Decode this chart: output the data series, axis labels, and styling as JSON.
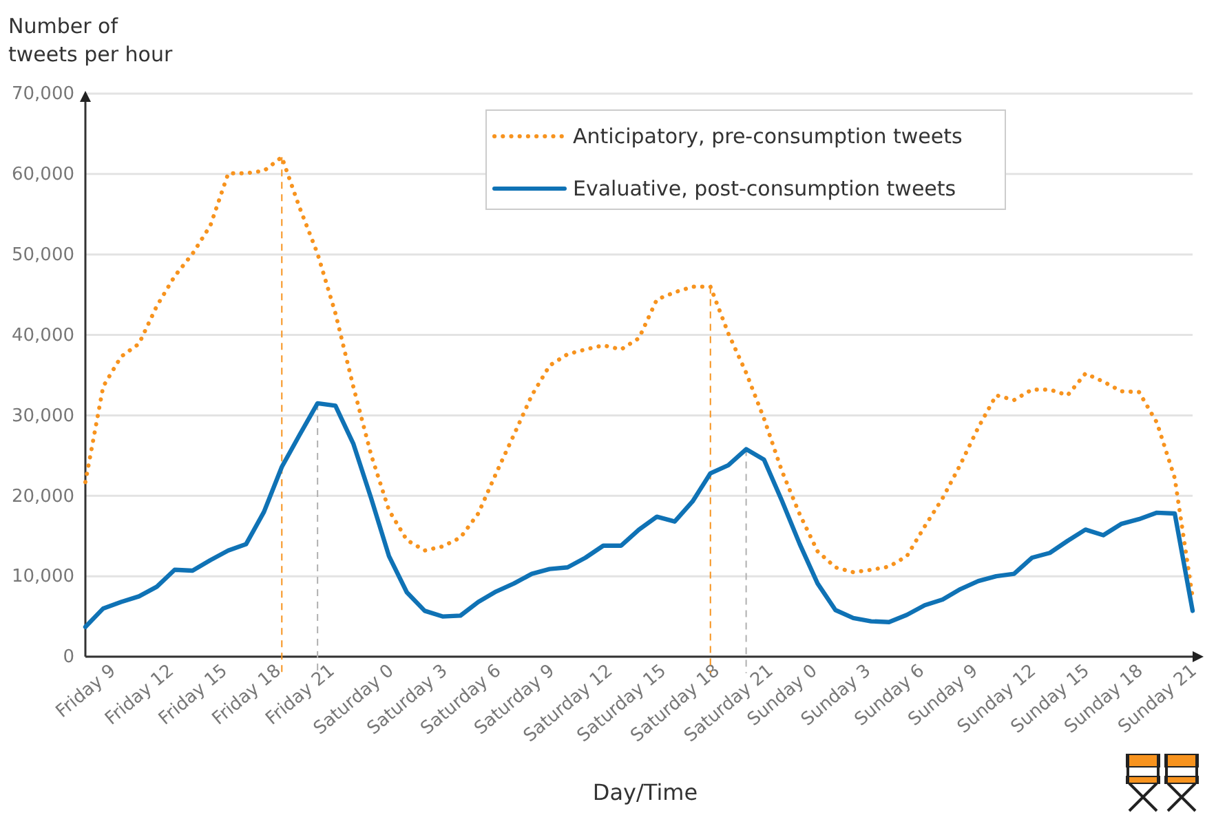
{
  "chart_data": {
    "type": "line",
    "ylabel": "Number of tweets per hour",
    "xlabel": "Day/Time",
    "categories": [
      "Friday 9",
      null,
      null,
      "Friday 12",
      null,
      null,
      "Friday 15",
      null,
      null,
      "Friday 18",
      null,
      null,
      "Friday 21",
      null,
      null,
      "Saturday 0",
      null,
      null,
      "Saturday 3",
      null,
      null,
      "Saturday 6",
      null,
      null,
      "Saturday 9",
      null,
      null,
      "Saturday 12",
      null,
      null,
      "Saturday 15",
      null,
      null,
      "Saturday 18",
      null,
      null,
      "Saturday 21",
      null,
      null,
      "Sunday 0",
      null,
      null,
      "Sunday 3",
      null,
      null,
      "Sunday 6",
      null,
      null,
      "Sunday 9",
      null,
      null,
      "Sunday 12",
      null,
      null,
      "Sunday 15",
      null,
      null,
      "Sunday 18",
      null,
      null,
      "Sunday 21",
      null,
      null
    ],
    "series": [
      {
        "name": "Anticipatory, pre-consumption tweets",
        "color": "#f7931e",
        "line_style": "dotted",
        "values": [
          21700,
          33600,
          37300,
          38900,
          43600,
          47300,
          50100,
          53600,
          60100,
          60100,
          60400,
          62100,
          55800,
          50100,
          42700,
          33600,
          25100,
          18200,
          14500,
          13200,
          13700,
          14800,
          17800,
          22800,
          27600,
          32500,
          36200,
          37600,
          38200,
          38700,
          38200,
          39600,
          44400,
          45300,
          46000,
          46000,
          40200,
          35300,
          29600,
          23100,
          17700,
          13100,
          11100,
          10500,
          10800,
          11200,
          12500,
          16200,
          19700,
          23900,
          28500,
          32500,
          31900,
          33200,
          33200,
          32500,
          35200,
          34200,
          33000,
          32900,
          29100,
          22200,
          7400
        ]
      },
      {
        "name": "Evaluative, post-consumption tweets",
        "color": "#0f72b5",
        "line_style": "solid",
        "values": [
          3700,
          6000,
          6800,
          7500,
          8700,
          10800,
          10700,
          12000,
          13200,
          14000,
          18000,
          23600,
          27600,
          31500,
          31200,
          26500,
          19700,
          12500,
          8000,
          5700,
          5000,
          5100,
          6800,
          8100,
          9100,
          10300,
          10900,
          11100,
          12300,
          13800,
          13800,
          15800,
          17400,
          16800,
          19300,
          22800,
          23800,
          25800,
          24500,
          19400,
          14000,
          9100,
          5800,
          4800,
          4400,
          4300,
          5200,
          6400,
          7100,
          8400,
          9400,
          10000,
          10300,
          12300,
          12900,
          14400,
          15800,
          15100,
          16500,
          17100,
          17900,
          17800,
          5700
        ]
      }
    ],
    "ylim": [
      0,
      70000
    ],
    "yticks": [
      0,
      {
        "value": 10000,
        "label": "10,000"
      },
      {
        "value": 20000,
        "label": "20,000"
      },
      {
        "value": 30000,
        "label": "30,000"
      },
      {
        "value": 40000,
        "label": "40,000"
      },
      {
        "value": 50000,
        "label": "50,000"
      },
      {
        "value": 60000,
        "label": "60,000"
      },
      {
        "value": 70000,
        "label": "70,000"
      }
    ],
    "grid": "y",
    "legend": "top right",
    "marker": "none"
  }
}
